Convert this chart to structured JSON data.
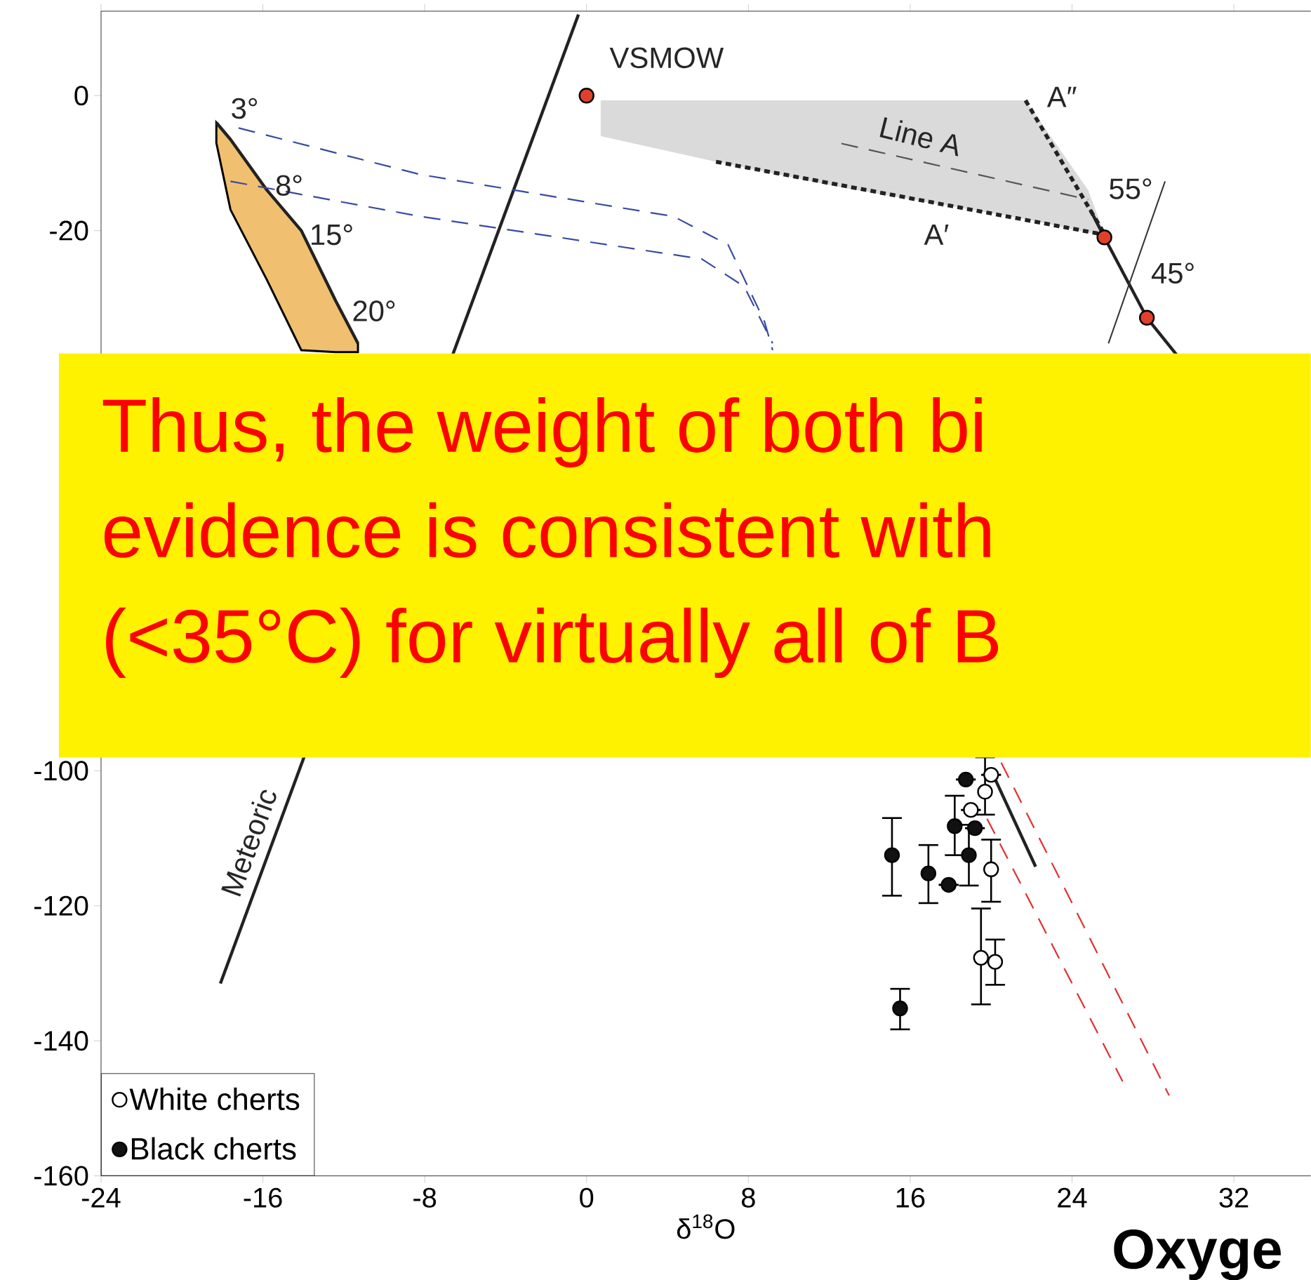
{
  "chart_data": {
    "type": "scatter",
    "xlabel": "δ$^{18}$O",
    "xlim": [
      -24,
      35.8
    ],
    "ylim": [
      -160,
      12.5
    ],
    "xticks": [
      -24,
      -16,
      -8,
      0,
      8,
      16,
      24,
      32
    ],
    "yticks": [
      -160,
      -140,
      -120,
      -100,
      -20,
      0
    ],
    "legend": "bottom left",
    "series": [
      {
        "type": "line",
        "color": "#222222",
        "line_style": "solid",
        "marker": "none",
        "x": [
          -18.3,
          -17.6,
          -15.8,
          -14.1,
          -12.4,
          -11.3
        ],
        "values": [
          -4,
          -6.5,
          -14,
          -20,
          -30.4,
          -36.7
        ],
        "lower": [
          -7,
          -16.9,
          -27.3,
          -37.7,
          -38,
          -38
        ],
        "upper": [
          -4,
          -6.5,
          -14,
          -20,
          -30.4,
          -36.7
        ]
      },
      {
        "type": "line",
        "color": "#555555",
        "line_style": "dashed",
        "marker": "none",
        "x": [
          0.7,
          6.4,
          12.6,
          21.7,
          24.8,
          25.6
        ],
        "values": [
          null,
          null,
          -7.1,
          -13.3,
          -15.4,
          null
        ],
        "lower": [
          -6,
          -9.8,
          -13.6,
          -18.3,
          -20.3,
          -20.5
        ],
        "upper": [
          -0.7,
          -0.7,
          -0.7,
          -0.7,
          -14,
          -20.5
        ]
      },
      {
        "type": "line",
        "color": "#222222",
        "line_style": "dotted",
        "marker": "none",
        "x": [
          6.4,
          25.6
        ],
        "values": [
          -9.8,
          -20.6
        ]
      },
      {
        "type": "line",
        "color": "#222222",
        "line_style": "dotted",
        "marker": "none",
        "x": [
          21.7,
          25.6
        ],
        "values": [
          -0.7,
          -20.5
        ]
      },
      {
        "type": "line",
        "color": "#222222",
        "line_style": "solid",
        "marker": "none",
        "x": [
          -18.1,
          -0.4
        ],
        "values": [
          -131.5,
          12
        ]
      },
      {
        "type": "line",
        "color": "#3a4aa0",
        "line_style": "dashed",
        "marker": "none",
        "x": [
          -17.2,
          -8.2,
          4.3,
          7.0,
          8.8,
          9.2
        ],
        "values": [
          -4.8,
          -11.7,
          -17.9,
          -22.1,
          -33.5,
          -37.7
        ]
      },
      {
        "type": "line",
        "color": "#3a4aa0",
        "line_style": "dashed",
        "marker": "none",
        "x": [
          -17.6,
          -8.2,
          5.7,
          7.8,
          9.2
        ],
        "values": [
          -12.7,
          -17.9,
          -24.2,
          -28.3,
          -36.7
        ]
      },
      {
        "type": "line",
        "color": "#e03030",
        "line_style": "dashed",
        "marker": "none",
        "x": [
          20.5,
          28.8
        ],
        "values": [
          -98.8,
          -148.1
        ]
      },
      {
        "type": "line",
        "color": "#e03030",
        "line_style": "dashed",
        "marker": "none",
        "x": [
          19.8,
          26.5
        ],
        "values": [
          -107.1,
          -146
        ]
      },
      {
        "type": "line",
        "color": "#222222",
        "line_style": "solid",
        "marker": "none",
        "x": [
          24.9,
          25.6,
          27.7,
          29.2
        ],
        "values": [
          -16.9,
          -21,
          -32.9,
          -38.5
        ]
      },
      {
        "type": "line",
        "color": "#222222",
        "line_style": "solid",
        "marker": "none",
        "x": [
          20.1,
          22.2
        ],
        "values": [
          -100.6,
          -114.2
        ]
      },
      {
        "type": "line",
        "color": "#333333",
        "line_style": "solid",
        "marker": "none",
        "x": [
          28.6,
          25.8
        ],
        "values": [
          -12.7,
          -36.7
        ]
      },
      {
        "type": "scatter",
        "color": "#e0402a",
        "marker": "circle",
        "x": [
          0,
          25.6,
          27.7
        ],
        "values": [
          0,
          -21,
          -32.9
        ]
      },
      {
        "name": "White cherts",
        "type": "scatter",
        "color": "#ffffff",
        "marker": "circle",
        "x": [
          20.0,
          19.7,
          19.0,
          20.0,
          19.5,
          20.2
        ],
        "values": [
          -100.6,
          -103.1,
          -105.8,
          -114.6,
          -127.7,
          -128.3
        ],
        "errors": [
          null,
          [
            -106.5,
            -98
          ],
          null,
          [
            -119.4,
            -110.2
          ],
          [
            -134.6,
            -120.4
          ],
          [
            -131.7,
            -125
          ]
        ]
      },
      {
        "name": "Black cherts",
        "type": "scatter",
        "color": "#111111",
        "marker": "circle",
        "x": [
          18.75,
          15.1,
          15.5,
          16.9,
          17.9,
          18.2,
          18.9,
          19.2
        ],
        "values": [
          -101.3,
          -112.5,
          -135.2,
          -115.2,
          -116.9,
          -108.2,
          -112.5,
          -108.5
        ],
        "errors": [
          null,
          [
            -118.5,
            -107
          ],
          [
            -138.3,
            -132.3
          ],
          [
            -119.6,
            -111
          ],
          null,
          [
            -112.5,
            -103.7
          ],
          [
            -117,
            -108
          ],
          null
        ]
      }
    ],
    "annotations": [
      "VSMOW",
      "3°",
      "8°",
      "15°",
      "20°",
      "Line A",
      "A′",
      "A″",
      "55°",
      "45°",
      "Meteoric",
      "Thus, the weight of both bi",
      "evidence is consistent with",
      "(<35°C) for virtually all of B",
      "Oxyge"
    ]
  }
}
